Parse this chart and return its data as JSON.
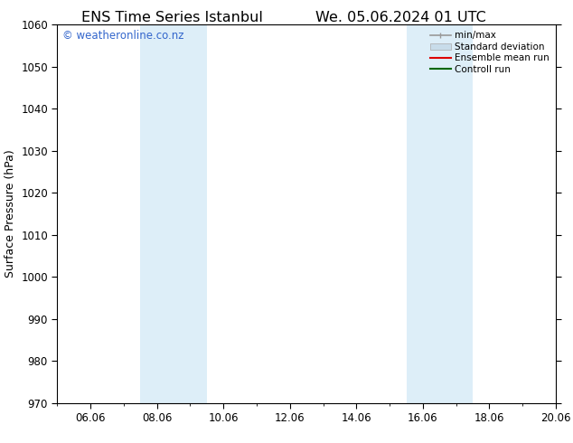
{
  "title_left": "ENS Time Series Istanbul",
  "title_right": "We. 05.06.2024 01 UTC",
  "ylabel": "Surface Pressure (hPa)",
  "ylim": [
    970,
    1060
  ],
  "yticks": [
    970,
    980,
    990,
    1000,
    1010,
    1020,
    1030,
    1040,
    1050,
    1060
  ],
  "xlim_start": 0.0,
  "xlim_end": 15.0,
  "xtick_labels": [
    "06.06",
    "08.06",
    "10.06",
    "12.06",
    "14.06",
    "16.06",
    "18.06",
    "20.06"
  ],
  "xtick_positions": [
    1.0,
    3.0,
    5.0,
    7.0,
    9.0,
    11.0,
    13.0,
    15.0
  ],
  "shaded_bands": [
    {
      "x_start": 2.5,
      "x_end": 4.5
    },
    {
      "x_start": 10.5,
      "x_end": 12.5
    }
  ],
  "shaded_color": "#ddeef8",
  "watermark_text": "© weatheronline.co.nz",
  "watermark_color": "#3366cc",
  "legend_entries": [
    {
      "label": "min/max",
      "color": "#999999",
      "lw": 1.2,
      "style": "minmax"
    },
    {
      "label": "Standard deviation",
      "color": "#c8dcea",
      "lw": 6,
      "style": "band"
    },
    {
      "label": "Ensemble mean run",
      "color": "#dd0000",
      "lw": 1.5,
      "style": "line"
    },
    {
      "label": "Controll run",
      "color": "#006600",
      "lw": 1.5,
      "style": "line"
    }
  ],
  "bg_color": "#ffffff",
  "plot_bg_color": "#ffffff",
  "spine_color": "#000000",
  "tick_color": "#000000",
  "title_fontsize": 11.5,
  "label_fontsize": 9,
  "tick_fontsize": 8.5,
  "watermark_fontsize": 8.5,
  "legend_fontsize": 7.5
}
